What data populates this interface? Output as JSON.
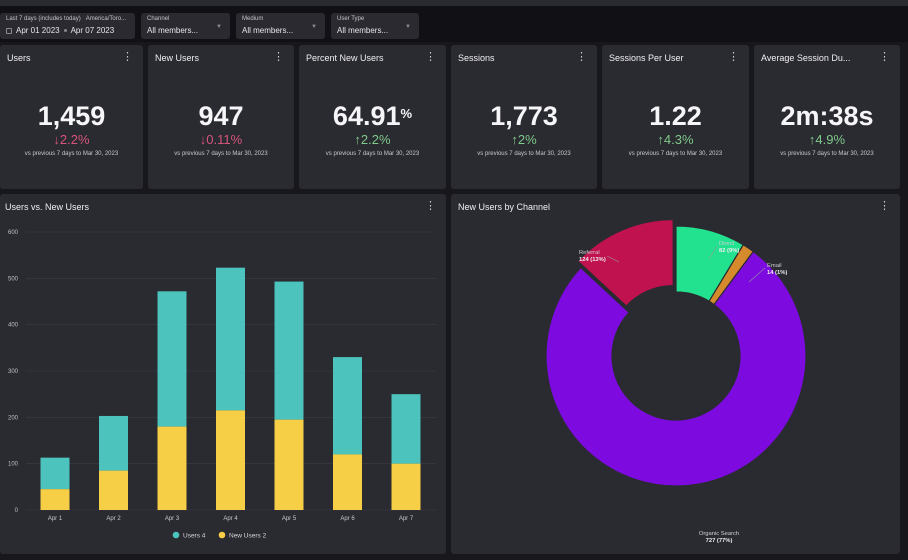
{
  "filters": {
    "date_range": {
      "label": "Last 7 days (includes today)",
      "timezone": "America/Toro...",
      "start": "Apr 01 2023",
      "end": "Apr 07 2023"
    },
    "channel": {
      "label": "Channel",
      "value": "All members..."
    },
    "medium": {
      "label": "Medium",
      "value": "All members..."
    },
    "user_type": {
      "label": "User Type",
      "value": "All members..."
    }
  },
  "kpis": [
    {
      "title": "Users",
      "value": "1,459",
      "suffix": "",
      "delta": "2.2%",
      "direction": "down",
      "comparison": "vs previous 7 days to Mar 30, 2023"
    },
    {
      "title": "New Users",
      "value": "947",
      "suffix": "",
      "delta": "0.11%",
      "direction": "down",
      "comparison": "vs previous 7 days to Mar 30, 2023"
    },
    {
      "title": "Percent New Users",
      "value": "64.91",
      "suffix": "%",
      "delta": "2.2%",
      "direction": "up",
      "comparison": "vs previous 7 days to Mar 30, 2023"
    },
    {
      "title": "Sessions",
      "value": "1,773",
      "suffix": "",
      "delta": "2%",
      "direction": "up",
      "comparison": "vs previous 7 days to Mar 30, 2023"
    },
    {
      "title": "Sessions Per User",
      "value": "1.22",
      "suffix": "",
      "delta": "4.3%",
      "direction": "up",
      "comparison": "vs previous 7 days to Mar 30, 2023"
    },
    {
      "title": "Average Session Du...",
      "value": "2m:38s",
      "suffix": "",
      "delta": "4.9%",
      "direction": "up",
      "comparison": "vs previous 7 days to Mar 30, 2023"
    }
  ],
  "colors": {
    "down": "#d6557a",
    "up": "#7fc98a",
    "users": "#4cc3bd",
    "new_users": "#f6cf46",
    "referral": "#c0124f",
    "direct": "#22e28f",
    "email": "#d58a2c",
    "organic": "#7d0be0"
  },
  "bar_panel": {
    "title": "Users vs. New Users"
  },
  "donut_panel": {
    "title": "New Users by Channel"
  },
  "chart_data": [
    {
      "type": "bar",
      "stacked": true,
      "title": "Users vs. New Users",
      "categories": [
        "Apr 1",
        "Apr 2",
        "Apr 3",
        "Apr 4",
        "Apr 5",
        "Apr 6",
        "Apr 7"
      ],
      "series": [
        {
          "name": "New Users 2",
          "values": [
            45,
            85,
            180,
            215,
            195,
            120,
            100
          ]
        },
        {
          "name": "Users 4",
          "values": [
            68,
            118,
            292,
            308,
            298,
            210,
            150
          ]
        }
      ],
      "ylim": [
        0,
        600
      ],
      "yticks": [
        "0",
        "100",
        "200",
        "300",
        "400",
        "500",
        "600"
      ],
      "legend": [
        "Users 4",
        "New Users 2"
      ],
      "legend_position": "bottom",
      "grid": true
    },
    {
      "type": "pie",
      "donut": true,
      "title": "New Users by Channel",
      "slices": [
        {
          "name": "Direct",
          "value": 82,
          "label": "82 (9%)"
        },
        {
          "name": "Email",
          "value": 14,
          "label": "14 (1%)"
        },
        {
          "name": "Organic Search",
          "value": 727,
          "label": "727 (77%)"
        },
        {
          "name": "Referral",
          "value": 124,
          "label": "124 (13%)"
        }
      ]
    }
  ]
}
